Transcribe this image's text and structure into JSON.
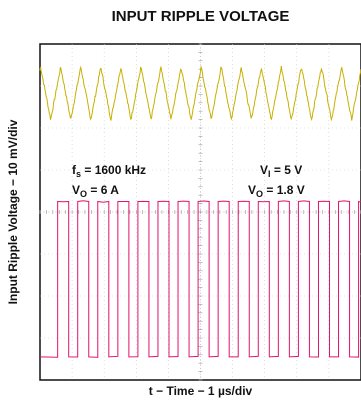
{
  "chart_data": {
    "type": "line",
    "title": "INPUT RIPPLE VOLTAGE",
    "xlabel": "t − Time − 1 µs/div",
    "ylabel": "Input Ripple Voltage − 10 mV/div",
    "grid": true,
    "x_divisions": 10,
    "y_divisions": 8,
    "series": [
      {
        "name": "",
        "color": "#c8b000",
        "shape": "triangle",
        "period_div": 0.625,
        "first_peak_div": 0.02,
        "peak_level_div": 7.45,
        "trough_level_div": 6.2,
        "note": "input ripple waveform (upper trace)"
      },
      {
        "name": "",
        "color": "#e0146e",
        "shape": "square",
        "period_div": 0.625,
        "first_rise_div": 0.55,
        "duty": 0.55,
        "high_level_div": 4.25,
        "low_level_div": 0.55
      }
    ],
    "annotations": {
      "fs_main": "f",
      "fs_sub": "s",
      "fs_value": " = 1600 kHz",
      "vo_main": "V",
      "vo_sub": "O",
      "vo_current": " = 6 A",
      "vi_main": "V",
      "vi_sub": "I",
      "vi_value": " = 5 V",
      "vo2_main": "V",
      "vo2_sub": "O",
      "vo2_value": " = 1.8 V"
    }
  }
}
